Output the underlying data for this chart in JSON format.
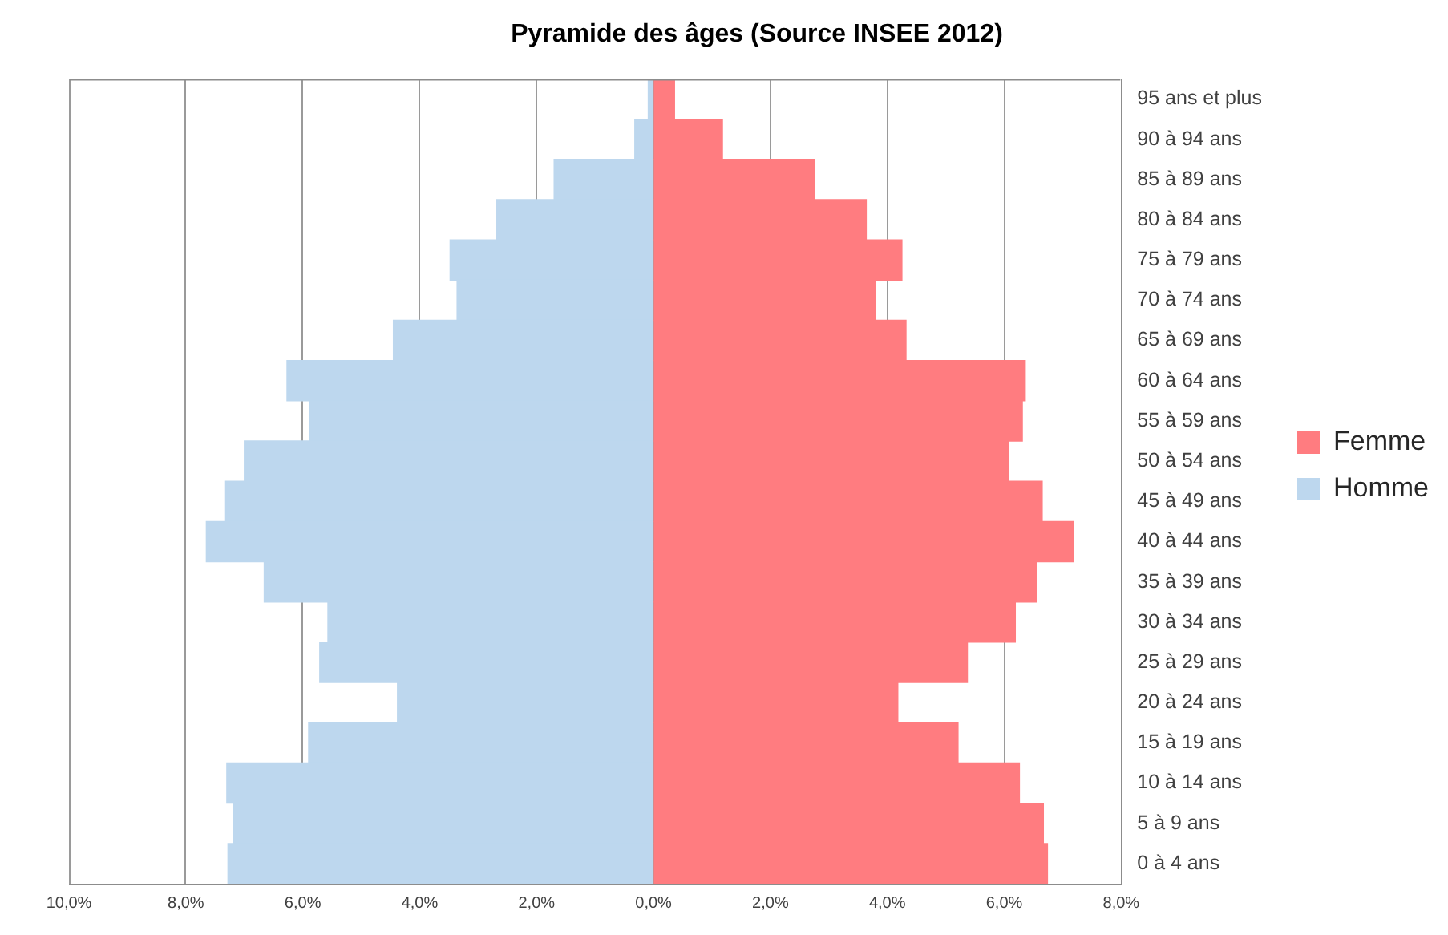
{
  "chart_data": {
    "type": "bar",
    "orientation": "horizontal",
    "stacked": true,
    "title": "Pyramide des âges (Source INSEE 2012)",
    "categories": [
      "95 ans et plus",
      "90 à 94 ans",
      "85 à 89 ans",
      "80 à 84 ans",
      "75 à 79 ans",
      "70 à 74 ans",
      "65 à 69 ans",
      "60 à 64 ans",
      "55 à 59 ans",
      "50 à 54 ans",
      "45 à 49 ans",
      "40 à 44 ans",
      "35 à 39 ans",
      "30 à 34 ans",
      "25 à 29 ans",
      "20 à 24 ans",
      "15 à 19 ans",
      "10 à 14 ans",
      "5 à 9 ans",
      "0 à 4 ans"
    ],
    "series": [
      {
        "name": "Femme",
        "color": "#ff7c80",
        "values": [
          0.36,
          1.18,
          2.76,
          3.64,
          4.25,
          3.8,
          4.32,
          6.36,
          6.31,
          6.07,
          6.65,
          7.18,
          6.55,
          6.19,
          5.37,
          4.18,
          5.21,
          6.26,
          6.67,
          6.74
        ]
      },
      {
        "name": "Homme",
        "color": "#bdd7ee",
        "values": [
          -0.09,
          -0.32,
          -1.7,
          -2.68,
          -3.48,
          -3.36,
          -4.45,
          -6.27,
          -5.89,
          -7.0,
          -7.32,
          -7.65,
          -6.66,
          -5.57,
          -5.71,
          -4.38,
          -5.9,
          -7.3,
          -7.18,
          -7.28
        ]
      }
    ],
    "xlim": [
      -10,
      8
    ],
    "xticks": [
      {
        "value": -10,
        "label": "10,0%"
      },
      {
        "value": -8,
        "label": "8,0%"
      },
      {
        "value": -6,
        "label": "6,0%"
      },
      {
        "value": -4,
        "label": "4,0%"
      },
      {
        "value": -2,
        "label": "2,0%"
      },
      {
        "value": 0,
        "label": "0,0%"
      },
      {
        "value": 2,
        "label": "2,0%"
      },
      {
        "value": 4,
        "label": "4,0%"
      },
      {
        "value": 6,
        "label": "6,0%"
      },
      {
        "value": 8,
        "label": "8,0%"
      }
    ],
    "grid": "x",
    "legend": "right"
  }
}
